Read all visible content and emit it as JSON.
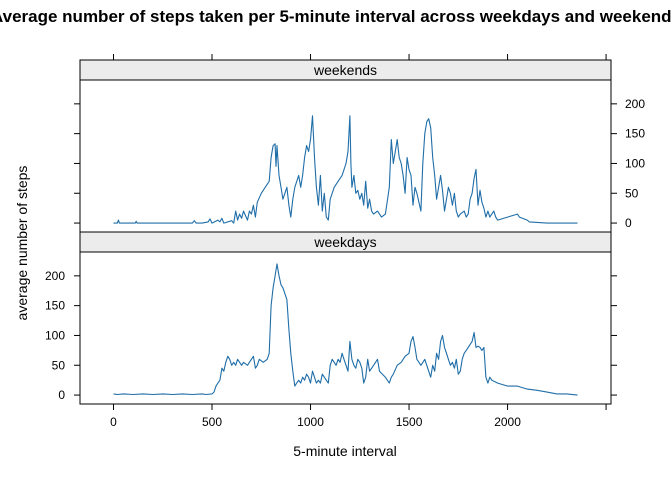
{
  "chart_data": {
    "type": "line",
    "title": "Average number of steps taken per 5-minute interval across weekdays and weekends",
    "xlabel": "5-minute interval",
    "ylabel": "average number of steps",
    "xlim": [
      -170,
      2525
    ],
    "ylim": [
      -15,
      240
    ],
    "x_ticks": [
      0,
      500,
      1000,
      1500,
      2000
    ],
    "y_ticks": [
      0,
      50,
      100,
      150,
      200
    ],
    "line_color": "#1f6ea8",
    "strip_fill": "#ececec",
    "series": [
      {
        "name": "weekends",
        "points": [
          [
            0,
            0
          ],
          [
            20,
            0
          ],
          [
            25,
            5
          ],
          [
            30,
            0
          ],
          [
            100,
            0
          ],
          [
            110,
            0
          ],
          [
            115,
            3
          ],
          [
            120,
            0
          ],
          [
            200,
            0
          ],
          [
            300,
            0
          ],
          [
            350,
            0
          ],
          [
            400,
            0
          ],
          [
            410,
            4
          ],
          [
            420,
            0
          ],
          [
            450,
            0
          ],
          [
            480,
            2
          ],
          [
            490,
            7
          ],
          [
            500,
            0
          ],
          [
            530,
            5
          ],
          [
            540,
            2
          ],
          [
            550,
            8
          ],
          [
            560,
            0
          ],
          [
            600,
            4
          ],
          [
            610,
            0
          ],
          [
            620,
            20
          ],
          [
            630,
            5
          ],
          [
            640,
            15
          ],
          [
            650,
            8
          ],
          [
            660,
            20
          ],
          [
            680,
            5
          ],
          [
            690,
            20
          ],
          [
            700,
            15
          ],
          [
            710,
            30
          ],
          [
            720,
            10
          ],
          [
            730,
            35
          ],
          [
            750,
            50
          ],
          [
            770,
            60
          ],
          [
            790,
            70
          ],
          [
            800,
            110
          ],
          [
            810,
            130
          ],
          [
            820,
            133
          ],
          [
            825,
            95
          ],
          [
            830,
            130
          ],
          [
            840,
            80
          ],
          [
            850,
            60
          ],
          [
            860,
            40
          ],
          [
            870,
            50
          ],
          [
            880,
            60
          ],
          [
            890,
            30
          ],
          [
            900,
            10
          ],
          [
            910,
            40
          ],
          [
            920,
            60
          ],
          [
            940,
            80
          ],
          [
            950,
            60
          ],
          [
            960,
            80
          ],
          [
            970,
            110
          ],
          [
            980,
            130
          ],
          [
            990,
            120
          ],
          [
            1000,
            140
          ],
          [
            1010,
            180
          ],
          [
            1015,
            145
          ],
          [
            1020,
            110
          ],
          [
            1030,
            60
          ],
          [
            1040,
            30
          ],
          [
            1050,
            80
          ],
          [
            1060,
            20
          ],
          [
            1070,
            50
          ],
          [
            1080,
            10
          ],
          [
            1090,
            5
          ],
          [
            1100,
            40
          ],
          [
            1120,
            60
          ],
          [
            1140,
            70
          ],
          [
            1160,
            80
          ],
          [
            1180,
            100
          ],
          [
            1190,
            120
          ],
          [
            1200,
            180
          ],
          [
            1205,
            100
          ],
          [
            1210,
            60
          ],
          [
            1220,
            80
          ],
          [
            1230,
            50
          ],
          [
            1240,
            55
          ],
          [
            1250,
            40
          ],
          [
            1260,
            50
          ],
          [
            1270,
            30
          ],
          [
            1280,
            70
          ],
          [
            1290,
            25
          ],
          [
            1300,
            40
          ],
          [
            1310,
            20
          ],
          [
            1320,
            15
          ],
          [
            1340,
            20
          ],
          [
            1360,
            10
          ],
          [
            1380,
            15
          ],
          [
            1400,
            60
          ],
          [
            1410,
            140
          ],
          [
            1420,
            100
          ],
          [
            1430,
            120
          ],
          [
            1440,
            140
          ],
          [
            1450,
            110
          ],
          [
            1460,
            100
          ],
          [
            1470,
            80
          ],
          [
            1480,
            50
          ],
          [
            1490,
            110
          ],
          [
            1500,
            90
          ],
          [
            1510,
            80
          ],
          [
            1520,
            30
          ],
          [
            1530,
            60
          ],
          [
            1540,
            50
          ],
          [
            1560,
            20
          ],
          [
            1570,
            100
          ],
          [
            1580,
            150
          ],
          [
            1590,
            170
          ],
          [
            1600,
            175
          ],
          [
            1610,
            160
          ],
          [
            1620,
            110
          ],
          [
            1630,
            80
          ],
          [
            1640,
            40
          ],
          [
            1650,
            60
          ],
          [
            1660,
            80
          ],
          [
            1670,
            55
          ],
          [
            1680,
            20
          ],
          [
            1690,
            40
          ],
          [
            1700,
            60
          ],
          [
            1710,
            50
          ],
          [
            1720,
            30
          ],
          [
            1730,
            50
          ],
          [
            1740,
            20
          ],
          [
            1750,
            10
          ],
          [
            1760,
            15
          ],
          [
            1780,
            20
          ],
          [
            1790,
            10
          ],
          [
            1800,
            15
          ],
          [
            1810,
            40
          ],
          [
            1820,
            50
          ],
          [
            1830,
            75
          ],
          [
            1840,
            90
          ],
          [
            1845,
            60
          ],
          [
            1850,
            30
          ],
          [
            1860,
            55
          ],
          [
            1870,
            35
          ],
          [
            1880,
            25
          ],
          [
            1890,
            10
          ],
          [
            1900,
            20
          ],
          [
            1910,
            10
          ],
          [
            1920,
            15
          ],
          [
            1930,
            20
          ],
          [
            1940,
            10
          ],
          [
            1950,
            5
          ],
          [
            2000,
            10
          ],
          [
            2050,
            15
          ],
          [
            2060,
            10
          ],
          [
            2100,
            5
          ],
          [
            2110,
            2
          ],
          [
            2200,
            0
          ],
          [
            2250,
            0
          ],
          [
            2300,
            0
          ],
          [
            2355,
            0
          ]
        ]
      },
      {
        "name": "weekdays",
        "points": [
          [
            0,
            2
          ],
          [
            20,
            1
          ],
          [
            50,
            2
          ],
          [
            100,
            1
          ],
          [
            150,
            2
          ],
          [
            200,
            1
          ],
          [
            250,
            2
          ],
          [
            300,
            1
          ],
          [
            350,
            2
          ],
          [
            400,
            1
          ],
          [
            450,
            2
          ],
          [
            470,
            1
          ],
          [
            500,
            2
          ],
          [
            510,
            5
          ],
          [
            520,
            15
          ],
          [
            530,
            20
          ],
          [
            540,
            25
          ],
          [
            550,
            45
          ],
          [
            560,
            40
          ],
          [
            570,
            55
          ],
          [
            580,
            65
          ],
          [
            590,
            60
          ],
          [
            600,
            50
          ],
          [
            610,
            55
          ],
          [
            620,
            50
          ],
          [
            630,
            60
          ],
          [
            640,
            55
          ],
          [
            650,
            50
          ],
          [
            660,
            55
          ],
          [
            680,
            50
          ],
          [
            700,
            60
          ],
          [
            710,
            65
          ],
          [
            720,
            45
          ],
          [
            730,
            50
          ],
          [
            740,
            60
          ],
          [
            760,
            55
          ],
          [
            780,
            60
          ],
          [
            790,
            70
          ],
          [
            800,
            150
          ],
          [
            810,
            180
          ],
          [
            820,
            200
          ],
          [
            830,
            220
          ],
          [
            840,
            200
          ],
          [
            850,
            185
          ],
          [
            860,
            180
          ],
          [
            870,
            170
          ],
          [
            880,
            160
          ],
          [
            890,
            110
          ],
          [
            900,
            70
          ],
          [
            910,
            40
          ],
          [
            920,
            15
          ],
          [
            930,
            20
          ],
          [
            940,
            25
          ],
          [
            950,
            20
          ],
          [
            960,
            30
          ],
          [
            970,
            25
          ],
          [
            980,
            35
          ],
          [
            990,
            30
          ],
          [
            1000,
            20
          ],
          [
            1010,
            40
          ],
          [
            1020,
            30
          ],
          [
            1030,
            20
          ],
          [
            1040,
            25
          ],
          [
            1050,
            20
          ],
          [
            1060,
            35
          ],
          [
            1070,
            30
          ],
          [
            1080,
            25
          ],
          [
            1090,
            20
          ],
          [
            1100,
            50
          ],
          [
            1110,
            60
          ],
          [
            1120,
            55
          ],
          [
            1130,
            50
          ],
          [
            1140,
            60
          ],
          [
            1150,
            55
          ],
          [
            1160,
            70
          ],
          [
            1170,
            60
          ],
          [
            1180,
            50
          ],
          [
            1190,
            40
          ],
          [
            1200,
            90
          ],
          [
            1210,
            60
          ],
          [
            1220,
            50
          ],
          [
            1230,
            45
          ],
          [
            1240,
            60
          ],
          [
            1250,
            55
          ],
          [
            1260,
            45
          ],
          [
            1270,
            20
          ],
          [
            1280,
            30
          ],
          [
            1290,
            60
          ],
          [
            1300,
            40
          ],
          [
            1320,
            50
          ],
          [
            1340,
            60
          ],
          [
            1350,
            40
          ],
          [
            1380,
            30
          ],
          [
            1400,
            20
          ],
          [
            1410,
            30
          ],
          [
            1420,
            35
          ],
          [
            1440,
            50
          ],
          [
            1460,
            55
          ],
          [
            1480,
            65
          ],
          [
            1500,
            70
          ],
          [
            1510,
            90
          ],
          [
            1520,
            98
          ],
          [
            1530,
            80
          ],
          [
            1540,
            60
          ],
          [
            1560,
            50
          ],
          [
            1580,
            60
          ],
          [
            1600,
            40
          ],
          [
            1610,
            30
          ],
          [
            1620,
            50
          ],
          [
            1630,
            40
          ],
          [
            1640,
            70
          ],
          [
            1650,
            60
          ],
          [
            1660,
            90
          ],
          [
            1670,
            100
          ],
          [
            1680,
            80
          ],
          [
            1690,
            70
          ],
          [
            1700,
            60
          ],
          [
            1710,
            50
          ],
          [
            1720,
            55
          ],
          [
            1730,
            45
          ],
          [
            1740,
            60
          ],
          [
            1750,
            35
          ],
          [
            1760,
            40
          ],
          [
            1770,
            60
          ],
          [
            1780,
            70
          ],
          [
            1790,
            75
          ],
          [
            1800,
            80
          ],
          [
            1810,
            85
          ],
          [
            1820,
            90
          ],
          [
            1830,
            105
          ],
          [
            1840,
            80
          ],
          [
            1850,
            82
          ],
          [
            1860,
            80
          ],
          [
            1870,
            75
          ],
          [
            1880,
            80
          ],
          [
            1890,
            30
          ],
          [
            1900,
            20
          ],
          [
            1910,
            30
          ],
          [
            1920,
            25
          ],
          [
            1950,
            20
          ],
          [
            2000,
            15
          ],
          [
            2050,
            15
          ],
          [
            2100,
            10
          ],
          [
            2150,
            8
          ],
          [
            2200,
            5
          ],
          [
            2250,
            2
          ],
          [
            2300,
            2
          ],
          [
            2355,
            0
          ]
        ]
      }
    ]
  }
}
